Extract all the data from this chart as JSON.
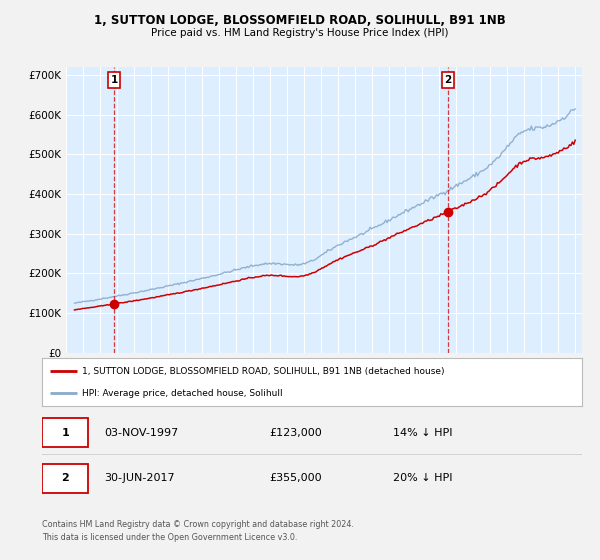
{
  "title1": "1, SUTTON LODGE, BLOSSOMFIELD ROAD, SOLIHULL, B91 1NB",
  "title2": "Price paid vs. HM Land Registry's House Price Index (HPI)",
  "ylim": [
    0,
    720000
  ],
  "yticks": [
    0,
    100000,
    200000,
    300000,
    400000,
    500000,
    600000,
    700000
  ],
  "yticklabels": [
    "£0",
    "£100K",
    "£200K",
    "£300K",
    "£400K",
    "£500K",
    "£600K",
    "£700K"
  ],
  "sale1_date": 1997.84,
  "sale1_price": 123000,
  "sale2_date": 2017.5,
  "sale2_price": 355000,
  "legend_line1": "1, SUTTON LODGE, BLOSSOMFIELD ROAD, SOLIHULL, B91 1NB (detached house)",
  "legend_line2": "HPI: Average price, detached house, Solihull",
  "row1_num": "1",
  "row1_date": "03-NOV-1997",
  "row1_price": "£123,000",
  "row1_hpi": "14% ↓ HPI",
  "row2_num": "2",
  "row2_date": "30-JUN-2017",
  "row2_price": "£355,000",
  "row2_hpi": "20% ↓ HPI",
  "footer1": "Contains HM Land Registry data © Crown copyright and database right 2024.",
  "footer2": "This data is licensed under the Open Government Licence v3.0.",
  "fig_bg": "#f2f2f2",
  "plot_bg": "#ddeeff",
  "red_color": "#cc0000",
  "blue_color": "#88aacc",
  "grid_color": "#ffffff",
  "legend_bg": "#ffffff",
  "box_edge": "#cc0000"
}
